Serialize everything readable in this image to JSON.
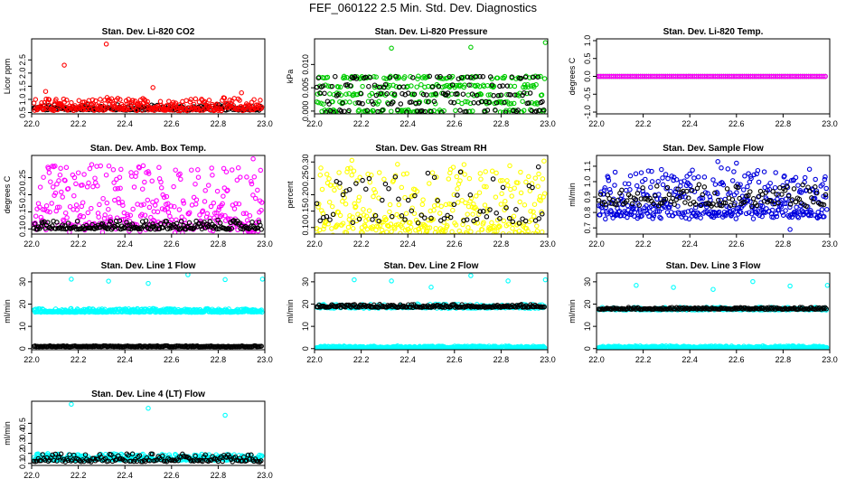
{
  "figure": {
    "title": "FEF_060122  2.5 Min. Std. Dev. Diagnostics"
  },
  "chart_data": [
    {
      "id": "co2",
      "type": "scatter",
      "title": "Stan. Dev. Li-820 CO2",
      "ylabel": "Licor ppm",
      "xlim": [
        22.0,
        23.0
      ],
      "ylim": [
        0.45,
        3.3
      ],
      "xticks": [
        "22.0",
        "22.2",
        "22.4",
        "22.6",
        "22.8",
        "23.0"
      ],
      "yticks": [
        {
          "v": 0.5,
          "t": "0.5"
        },
        {
          "v": 1.0,
          "t": "1.0"
        },
        {
          "v": 1.5,
          "t": "1.5"
        },
        {
          "v": 2.0,
          "t": "2.0"
        },
        {
          "v": 2.5,
          "t": "2.5"
        }
      ],
      "series": [
        {
          "color": "#000000",
          "n": 200,
          "base": 0.6,
          "spread": 0.2,
          "outliers": []
        },
        {
          "color": "#ff0000",
          "n": 300,
          "base": 0.6,
          "spread": 0.45,
          "outliers": [
            [
              22.32,
              3.1
            ],
            [
              22.14,
              2.3
            ],
            [
              22.06,
              1.3
            ],
            [
              22.52,
              1.45
            ],
            [
              22.9,
              1.25
            ]
          ]
        }
      ]
    },
    {
      "id": "pressure",
      "type": "scatter",
      "title": "Stan. Dev. Li-820 Pressure",
      "ylabel": "kPa",
      "xlim": [
        22.0,
        23.0
      ],
      "ylim": [
        -0.0006,
        0.0155
      ],
      "xticks": [
        "22.0",
        "22.2",
        "22.4",
        "22.6",
        "22.8",
        "23.0"
      ],
      "yticks": [
        {
          "v": 0.0,
          "t": "0.000"
        },
        {
          "v": 0.005,
          "t": "0.005"
        },
        {
          "v": 0.01,
          "t": "0.010"
        }
      ],
      "series": [
        {
          "color": "#00cc00",
          "n": 320,
          "base": 0.0,
          "spread": 0.0072,
          "levels": [
            0,
            0.0018,
            0.0036,
            0.0054,
            0.0072
          ],
          "outliers": [
            [
              22.33,
              0.0135
            ],
            [
              22.67,
              0.0137
            ],
            [
              22.99,
              0.0147
            ]
          ]
        },
        {
          "color": "#000000",
          "n": 150,
          "base": 0.0,
          "spread": 0.0072,
          "levels": [
            0,
            0.0018,
            0.0036,
            0.0054,
            0.0072
          ],
          "outliers": []
        }
      ]
    },
    {
      "id": "temp",
      "type": "scatter",
      "title": "Stan. Dev. Li-820 Temp.",
      "ylabel": "degrees C",
      "xlim": [
        22.0,
        23.0
      ],
      "ylim": [
        -1.05,
        1.05
      ],
      "xticks": [
        "22.0",
        "22.2",
        "22.4",
        "22.6",
        "22.8",
        "23.0"
      ],
      "yticks": [
        {
          "v": -1.0,
          "t": "-1.0"
        },
        {
          "v": -0.5,
          "t": "-0.5"
        },
        {
          "v": 0.0,
          "t": "0.0"
        },
        {
          "v": 0.5,
          "t": "0.5"
        },
        {
          "v": 1.0,
          "t": "1.0"
        }
      ],
      "series": [
        {
          "color": "#000000",
          "n": 110,
          "base": 0.0,
          "spread": 0.0,
          "outliers": []
        },
        {
          "color": "#ff00ff",
          "n": 110,
          "base": 0.0,
          "spread": 0.0,
          "outliers": [
            [
              22.0,
              0.0
            ]
          ]
        }
      ]
    },
    {
      "id": "ambbox",
      "type": "scatter",
      "title": "Stan. Dev. Amb. Box Temp.",
      "ylabel": "degrees C",
      "xlim": [
        22.0,
        23.0
      ],
      "ylim": [
        0.085,
        0.315
      ],
      "xticks": [
        "22.0",
        "22.2",
        "22.4",
        "22.6",
        "22.8",
        "23.0"
      ],
      "yticks": [
        {
          "v": 0.1,
          "t": "0.10"
        },
        {
          "v": 0.15,
          "t": "0.15"
        },
        {
          "v": 0.2,
          "t": "0.20"
        },
        {
          "v": 0.25,
          "t": "0.25"
        }
      ],
      "series": [
        {
          "color": "#ff00ff",
          "n": 360,
          "base": 0.1,
          "spread": 0.19,
          "outliers": [
            [
              22.95,
              0.305
            ]
          ]
        },
        {
          "color": "#000000",
          "n": 200,
          "base": 0.1,
          "spread": 0.025,
          "outliers": []
        }
      ]
    },
    {
      "id": "rh",
      "type": "scatter",
      "title": "Stan. Dev. Gas Stream RH",
      "ylabel": "percent",
      "xlim": [
        22.0,
        23.0
      ],
      "ylim": [
        0.08,
        0.32
      ],
      "xticks": [
        "22.0",
        "22.2",
        "22.4",
        "22.6",
        "22.8",
        "23.0"
      ],
      "yticks": [
        {
          "v": 0.1,
          "t": "0.10"
        },
        {
          "v": 0.15,
          "t": "0.15"
        },
        {
          "v": 0.2,
          "t": "0.20"
        },
        {
          "v": 0.25,
          "t": "0.25"
        },
        {
          "v": 0.3,
          "t": "0.30"
        }
      ],
      "series": [
        {
          "color": "#ffff00",
          "n": 340,
          "base": 0.09,
          "spread": 0.2,
          "outliers": [
            [
              22.16,
              0.305
            ]
          ]
        },
        {
          "color": "#000000",
          "n": 70,
          "base": 0.12,
          "spread": 0.15,
          "outliers": [
            [
              22.96,
              0.285
            ]
          ]
        }
      ]
    },
    {
      "id": "sampleflow",
      "type": "scatter",
      "title": "Stan. Dev. Sample Flow",
      "ylabel": "ml/min",
      "xlim": [
        22.0,
        23.0
      ],
      "ylim": [
        0.66,
        1.17
      ],
      "xticks": [
        "22.0",
        "22.2",
        "22.4",
        "22.6",
        "22.8",
        "23.0"
      ],
      "yticks": [
        {
          "v": 0.7,
          "t": "0.7"
        },
        {
          "v": 0.8,
          "t": "0.8"
        },
        {
          "v": 0.9,
          "t": "0.9"
        },
        {
          "v": 1.0,
          "t": "1.0"
        },
        {
          "v": 1.1,
          "t": "1.1"
        }
      ],
      "series": [
        {
          "color": "#0000dd",
          "n": 420,
          "base": 0.78,
          "spread": 0.3,
          "outliers": [
            [
              22.83,
              0.69
            ],
            [
              22.52,
              1.13
            ],
            [
              22.6,
              1.12
            ]
          ]
        },
        {
          "color": "#000000",
          "n": 130,
          "base": 0.85,
          "spread": 0.13,
          "outliers": []
        }
      ]
    },
    {
      "id": "line1",
      "type": "scatter",
      "title": "Stan. Dev. Line 1 Flow",
      "ylabel": "ml/min",
      "xlim": [
        22.0,
        23.0
      ],
      "ylim": [
        -0.5,
        34
      ],
      "xticks": [
        "22.0",
        "22.2",
        "22.4",
        "22.6",
        "22.8",
        "23.0"
      ],
      "yticks": [
        {
          "v": 0,
          "t": "0"
        },
        {
          "v": 10,
          "t": "10"
        },
        {
          "v": 20,
          "t": "20"
        },
        {
          "v": 30,
          "t": "30"
        }
      ],
      "series": [
        {
          "color": "#00ffff",
          "n": 400,
          "base": 16.4,
          "spread": 1.6,
          "outliers": [
            [
              22.17,
              31.2
            ],
            [
              22.33,
              30.3
            ],
            [
              22.5,
              29.3
            ],
            [
              22.67,
              33.2
            ],
            [
              22.83,
              31.0
            ],
            [
              22.99,
              31.2
            ]
          ]
        },
        {
          "color": "#000000",
          "n": 200,
          "base": 0.9,
          "spread": 0.4,
          "outliers": []
        }
      ]
    },
    {
      "id": "line2",
      "type": "scatter",
      "title": "Stan. Dev. Line 2 Flow",
      "ylabel": "ml/min",
      "xlim": [
        22.0,
        23.0
      ],
      "ylim": [
        -0.5,
        34
      ],
      "xticks": [
        "22.0",
        "22.2",
        "22.4",
        "22.6",
        "22.8",
        "23.0"
      ],
      "yticks": [
        {
          "v": 0,
          "t": "0"
        },
        {
          "v": 10,
          "t": "10"
        },
        {
          "v": 20,
          "t": "20"
        },
        {
          "v": 30,
          "t": "30"
        }
      ],
      "series": [
        {
          "color": "#00ffff",
          "n": 320,
          "base": 0.4,
          "spread": 0.8,
          "outliers": [
            [
              22.17,
              30.9
            ],
            [
              22.33,
              30.4
            ],
            [
              22.5,
              27.6
            ],
            [
              22.67,
              32.8
            ],
            [
              22.83,
              30.4
            ],
            [
              22.99,
              30.9
            ]
          ]
        },
        {
          "color": "#00ffff",
          "n": 200,
          "base": 18.2,
          "spread": 1.8,
          "outliers": []
        },
        {
          "color": "#000000",
          "n": 200,
          "base": 18.6,
          "spread": 1.2,
          "outliers": []
        }
      ]
    },
    {
      "id": "line3",
      "type": "scatter",
      "title": "Stan. Dev. Line 3 Flow",
      "ylabel": "ml/min",
      "xlim": [
        22.0,
        23.0
      ],
      "ylim": [
        -0.5,
        34
      ],
      "xticks": [
        "22.0",
        "22.2",
        "22.4",
        "22.6",
        "22.8",
        "23.0"
      ],
      "yticks": [
        {
          "v": 0,
          "t": "0"
        },
        {
          "v": 10,
          "t": "10"
        },
        {
          "v": 20,
          "t": "20"
        },
        {
          "v": 30,
          "t": "30"
        }
      ],
      "series": [
        {
          "color": "#00ffff",
          "n": 320,
          "base": 0.4,
          "spread": 0.8,
          "outliers": [
            [
              22.17,
              28.4
            ],
            [
              22.33,
              27.5
            ],
            [
              22.5,
              26.6
            ],
            [
              22.67,
              30.1
            ],
            [
              22.83,
              28.1
            ],
            [
              22.99,
              28.4
            ]
          ]
        },
        {
          "color": "#00ffff",
          "n": 200,
          "base": 17.4,
          "spread": 1.2,
          "outliers": []
        },
        {
          "color": "#000000",
          "n": 200,
          "base": 17.7,
          "spread": 0.8,
          "outliers": []
        }
      ]
    },
    {
      "id": "line4",
      "type": "scatter",
      "title": "Stan. Dev. Line 4 (LT) Flow",
      "ylabel": "ml/min",
      "xlim": [
        22.0,
        23.0
      ],
      "ylim": [
        0.08,
        0.72
      ],
      "xticks": [
        "22.0",
        "22.2",
        "22.4",
        "22.6",
        "22.8",
        "23.0"
      ],
      "yticks": [
        {
          "v": 0.1,
          "t": "0.1"
        },
        {
          "v": 0.2,
          "t": "0.2"
        },
        {
          "v": 0.3,
          "t": "0.3"
        },
        {
          "v": 0.4,
          "t": "0.4"
        },
        {
          "v": 0.5,
          "t": "0.5"
        }
      ],
      "series": [
        {
          "color": "#00ffff",
          "n": 380,
          "base": 0.135,
          "spread": 0.06,
          "outliers": [
            [
              22.17,
              0.69
            ],
            [
              22.5,
              0.65
            ],
            [
              22.83,
              0.58
            ]
          ]
        },
        {
          "color": "#000000",
          "n": 160,
          "base": 0.12,
          "spread": 0.075,
          "outliers": []
        }
      ]
    }
  ]
}
